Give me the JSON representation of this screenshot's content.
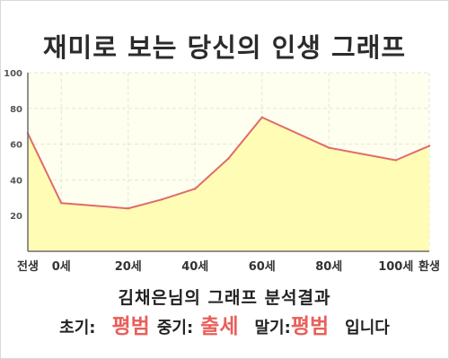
{
  "chart_data": {
    "type": "line",
    "title": "재미로 보는 당신의 인생 그래프",
    "categories": [
      "전생",
      "0세",
      "20세",
      "40세",
      "60세",
      "80세",
      "100세",
      "환생"
    ],
    "x": [
      -10,
      0,
      20,
      40,
      60,
      80,
      100,
      110
    ],
    "values": [
      [
        -10,
        66
      ],
      [
        0,
        27
      ],
      [
        20,
        24
      ],
      [
        30,
        29
      ],
      [
        40,
        35
      ],
      [
        50,
        52
      ],
      [
        60,
        75
      ],
      [
        80,
        58
      ],
      [
        100,
        51
      ],
      [
        110,
        59
      ]
    ],
    "ylim": [
      0,
      100
    ],
    "yticks": [
      20,
      40,
      60,
      80,
      100
    ],
    "grid": true,
    "colors": {
      "line": "#e06b6b",
      "fill": "#fefcb5",
      "plot_bg": "#fffff0",
      "grid": "#e6e6d8",
      "axis": "#6b6b6b"
    }
  },
  "analysis": {
    "heading": "김채은님의 그래프 분석결과",
    "early_label": "초기:",
    "early_value": "평범",
    "middle_label": "중기:",
    "middle_value": "출세",
    "late_label": "말기:",
    "late_value": "평범",
    "suffix": "입니다"
  }
}
